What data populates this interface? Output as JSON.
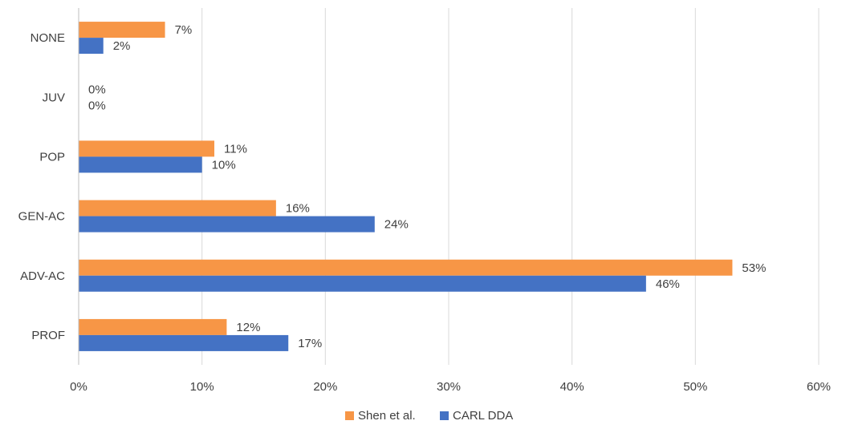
{
  "chart_data": {
    "type": "bar",
    "orientation": "horizontal",
    "categories": [
      "NONE",
      "JUV",
      "POP",
      "GEN-AC",
      "ADV-AC",
      "PROF"
    ],
    "series": [
      {
        "name": "Shen et al.",
        "color": "#f79646",
        "values": [
          7,
          0,
          11,
          16,
          53,
          12
        ],
        "labels": [
          "7%",
          "0%",
          "11%",
          "16%",
          "53%",
          "12%"
        ]
      },
      {
        "name": "CARL DDA",
        "color": "#4472c4",
        "values": [
          2,
          0,
          10,
          24,
          46,
          17
        ],
        "labels": [
          "2%",
          "0%",
          "10%",
          "24%",
          "46%",
          "17%"
        ]
      }
    ],
    "xlim": [
      0,
      60
    ],
    "xticks": [
      0,
      10,
      20,
      30,
      40,
      50,
      60
    ],
    "xtick_labels": [
      "0%",
      "10%",
      "20%",
      "30%",
      "40%",
      "50%",
      "60%"
    ],
    "grid": true,
    "legend": "bottom-center",
    "title": "",
    "xlabel": "",
    "ylabel": ""
  }
}
